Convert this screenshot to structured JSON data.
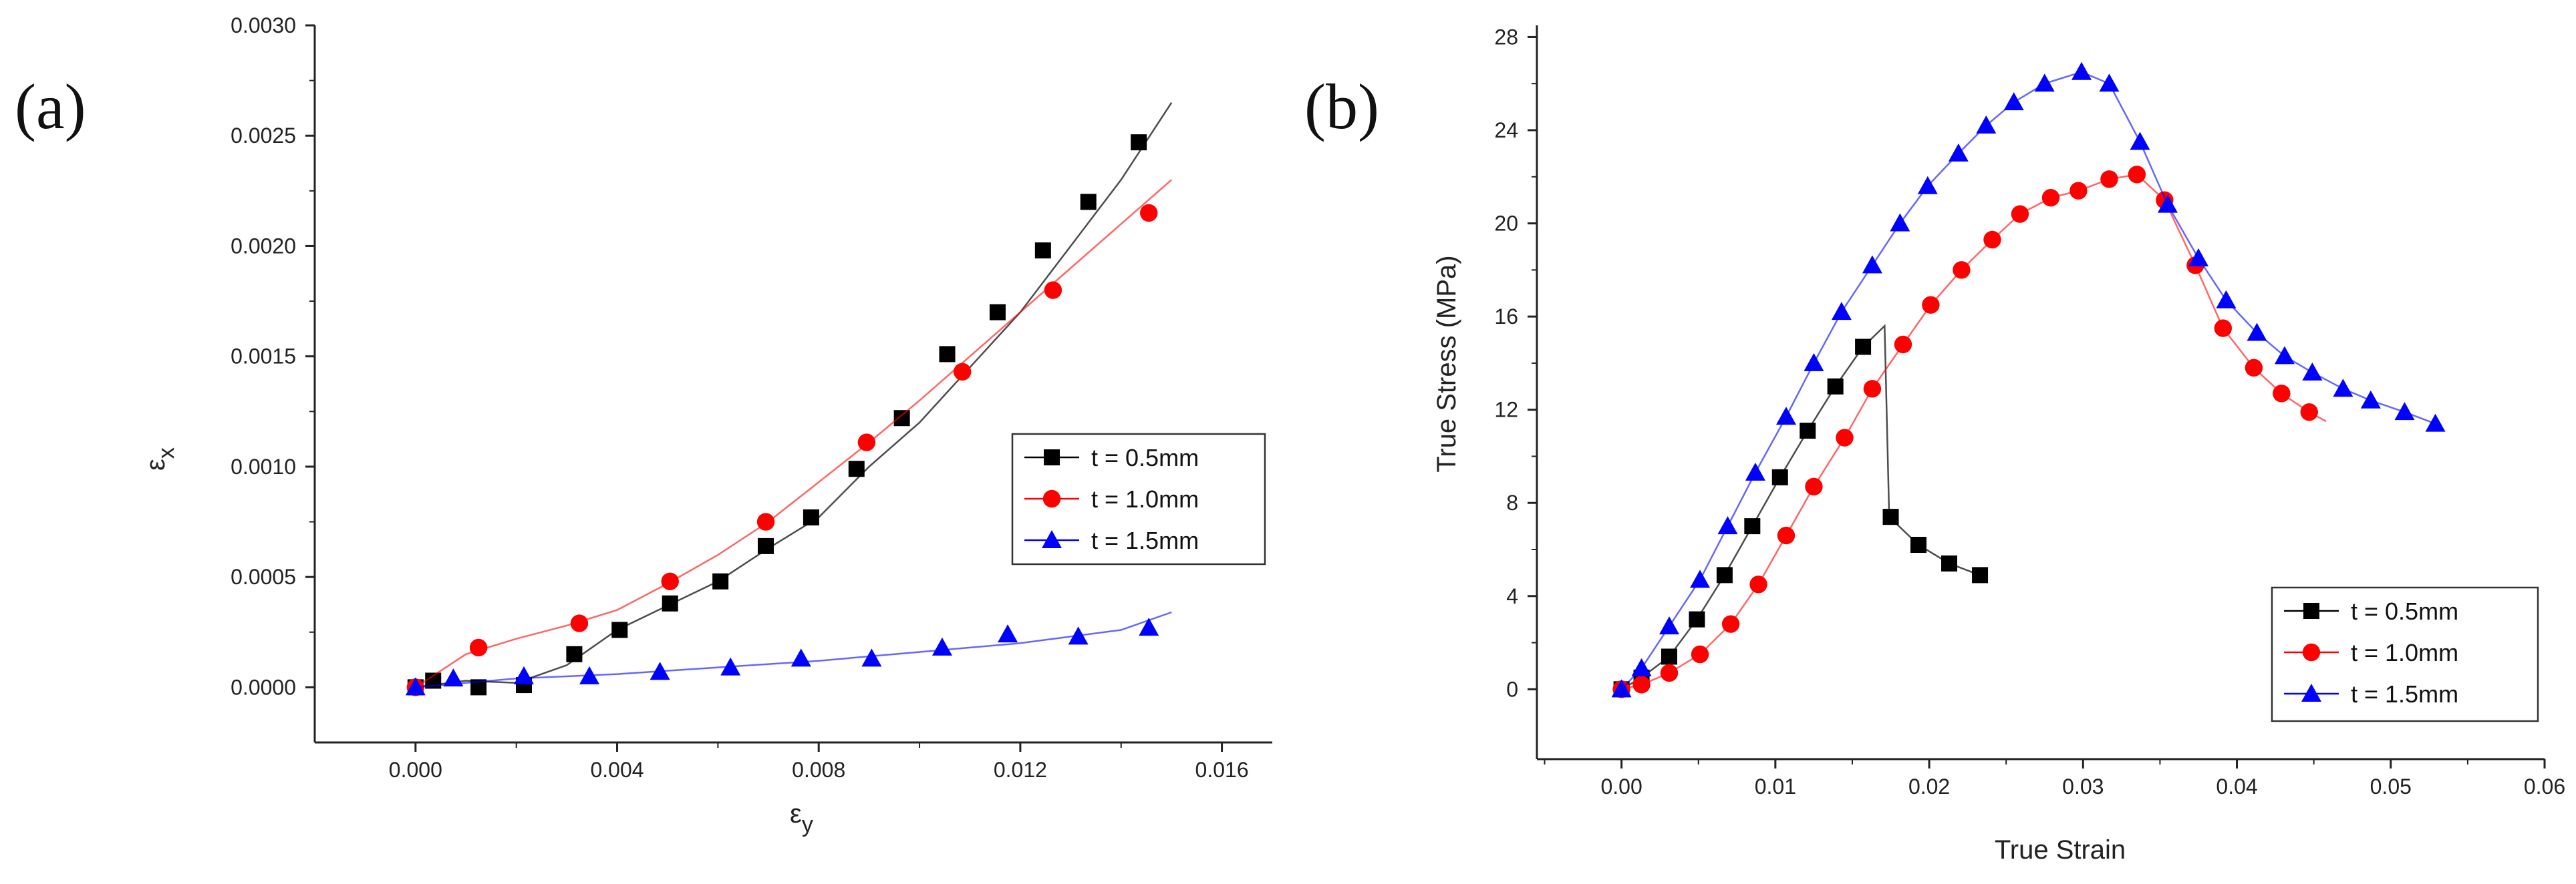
{
  "chart_data": [
    {
      "type": "line",
      "panel_label": "(a)",
      "xlabel": "ε",
      "xlabel_sub": "y",
      "ylabel": "ε",
      "ylabel_sub": "x",
      "xlim": [
        -0.002,
        0.017
      ],
      "ylim": [
        -0.00025,
        0.003
      ],
      "xticks": [
        0.0,
        0.004,
        0.008,
        0.012,
        0.016
      ],
      "xtick_labels": [
        "0.000",
        "0.004",
        "0.008",
        "0.012",
        "0.016"
      ],
      "yticks": [
        0.0,
        0.0005,
        0.001,
        0.0015,
        0.002,
        0.0025,
        0.003
      ],
      "ytick_labels": [
        "0.0000",
        "0.0005",
        "0.0010",
        "0.0015",
        "0.0020",
        "0.0025",
        "0.0030"
      ],
      "legend_position": "center-right",
      "series": [
        {
          "name": "t = 0.5mm",
          "color": "#000000",
          "marker": "square",
          "line": [
            [
              0,
              0
            ],
            [
              0.001,
              3e-05
            ],
            [
              0.002,
              2e-05
            ],
            [
              0.003,
              0.0001
            ],
            [
              0.004,
              0.00026
            ],
            [
              0.005,
              0.00037
            ],
            [
              0.006,
              0.00048
            ],
            [
              0.007,
              0.00063
            ],
            [
              0.008,
              0.00077
            ],
            [
              0.009,
              0.001
            ],
            [
              0.01,
              0.0012
            ],
            [
              0.011,
              0.00145
            ],
            [
              0.012,
              0.0017
            ],
            [
              0.013,
              0.002
            ],
            [
              0.014,
              0.0023
            ],
            [
              0.015,
              0.00265
            ]
          ],
          "points": [
            [
              0.0,
              0.0
            ],
            [
              0.00035,
              3e-05
            ],
            [
              0.00125,
              0.0
            ],
            [
              0.00215,
              1e-05
            ],
            [
              0.00315,
              0.00015
            ],
            [
              0.00405,
              0.00026
            ],
            [
              0.00505,
              0.00038
            ],
            [
              0.00605,
              0.00048
            ],
            [
              0.00695,
              0.00064
            ],
            [
              0.00785,
              0.00077
            ],
            [
              0.00875,
              0.00099
            ],
            [
              0.00965,
              0.00122
            ],
            [
              0.01055,
              0.00151
            ],
            [
              0.01155,
              0.0017
            ],
            [
              0.01245,
              0.00198
            ],
            [
              0.01335,
              0.0022
            ],
            [
              0.01435,
              0.00247
            ]
          ]
        },
        {
          "name": "t = 1.0mm",
          "color": "#ff0000",
          "marker": "circle",
          "line": [
            [
              0,
              0
            ],
            [
              0.001,
              0.00015
            ],
            [
              0.002,
              0.00022
            ],
            [
              0.003,
              0.00028
            ],
            [
              0.004,
              0.00035
            ],
            [
              0.005,
              0.00047
            ],
            [
              0.006,
              0.0006
            ],
            [
              0.007,
              0.00075
            ],
            [
              0.008,
              0.00093
            ],
            [
              0.009,
              0.00111
            ],
            [
              0.01,
              0.0013
            ],
            [
              0.011,
              0.0015
            ],
            [
              0.012,
              0.0017
            ],
            [
              0.013,
              0.0019
            ],
            [
              0.014,
              0.0021
            ],
            [
              0.015,
              0.0023
            ]
          ],
          "points": [
            [
              0.0,
              0.0
            ],
            [
              0.00125,
              0.00018
            ],
            [
              0.00325,
              0.00029
            ],
            [
              0.00505,
              0.00048
            ],
            [
              0.00695,
              0.00075
            ],
            [
              0.00895,
              0.00111
            ],
            [
              0.01085,
              0.00143
            ],
            [
              0.01265,
              0.0018
            ],
            [
              0.01455,
              0.00215
            ]
          ]
        },
        {
          "name": "t = 1.5mm",
          "color": "#0000ff",
          "marker": "triangle",
          "line": [
            [
              0,
              0
            ],
            [
              0.002,
              4e-05
            ],
            [
              0.004,
              6e-05
            ],
            [
              0.006,
              9e-05
            ],
            [
              0.008,
              0.00012
            ],
            [
              0.01,
              0.00016
            ],
            [
              0.012,
              0.0002
            ],
            [
              0.014,
              0.00026
            ],
            [
              0.015,
              0.00034
            ]
          ],
          "points": [
            [
              0.0,
              0.0
            ],
            [
              0.00075,
              4e-05
            ],
            [
              0.00215,
              5e-05
            ],
            [
              0.00345,
              5e-05
            ],
            [
              0.00485,
              7e-05
            ],
            [
              0.00625,
              9e-05
            ],
            [
              0.00765,
              0.00013
            ],
            [
              0.00905,
              0.00013
            ],
            [
              0.01045,
              0.00018
            ],
            [
              0.01175,
              0.00024
            ],
            [
              0.01315,
              0.00023
            ],
            [
              0.01455,
              0.00027
            ]
          ]
        }
      ]
    },
    {
      "type": "line",
      "panel_label": "(b)",
      "xlabel": "True Strain",
      "ylabel": "True Stress (MPa)",
      "xlim": [
        -0.0055,
        0.06
      ],
      "ylim": [
        -3,
        28.5
      ],
      "xticks": [
        0.0,
        0.01,
        0.02,
        0.03,
        0.04,
        0.05,
        0.06
      ],
      "xtick_labels": [
        "0.00",
        "0.01",
        "0.02",
        "0.03",
        "0.04",
        "0.05",
        "0.06"
      ],
      "yticks": [
        0,
        4,
        8,
        12,
        16,
        20,
        24,
        28
      ],
      "ytick_labels": [
        "0",
        "4",
        "8",
        "12",
        "16",
        "20",
        "24",
        "28"
      ],
      "legend_position": "bottom-right",
      "series": [
        {
          "name": "t = 0.5mm",
          "color": "#000000",
          "marker": "square",
          "line": [
            [
              0,
              0
            ],
            [
              0.0013,
              0.5
            ],
            [
              0.0031,
              1.4
            ],
            [
              0.0049,
              3.0
            ],
            [
              0.0067,
              4.9
            ],
            [
              0.0085,
              7.0
            ],
            [
              0.0103,
              9.1
            ],
            [
              0.0121,
              11.1
            ],
            [
              0.0139,
              13.0
            ],
            [
              0.0157,
              14.7
            ],
            [
              0.0171,
              15.6
            ],
            [
              0.0174,
              7.4
            ],
            [
              0.0193,
              6.2
            ],
            [
              0.0213,
              5.4
            ],
            [
              0.0233,
              4.9
            ]
          ],
          "points": [
            [
              0,
              0
            ],
            [
              0.0013,
              0.5
            ],
            [
              0.0031,
              1.4
            ],
            [
              0.0049,
              3.0
            ],
            [
              0.0067,
              4.9
            ],
            [
              0.0085,
              7.0
            ],
            [
              0.0103,
              9.1
            ],
            [
              0.0121,
              11.1
            ],
            [
              0.0139,
              13.0
            ],
            [
              0.0157,
              14.7
            ],
            [
              0.0175,
              7.4
            ],
            [
              0.0193,
              6.2
            ],
            [
              0.0213,
              5.4
            ],
            [
              0.0233,
              4.9
            ]
          ]
        },
        {
          "name": "t = 1.0mm",
          "color": "#ff0000",
          "marker": "circle",
          "line": [
            [
              0,
              0
            ],
            [
              0.0013,
              0.2
            ],
            [
              0.0031,
              0.7
            ],
            [
              0.0051,
              1.5
            ],
            [
              0.0071,
              2.8
            ],
            [
              0.0089,
              4.5
            ],
            [
              0.0107,
              6.6
            ],
            [
              0.0125,
              8.7
            ],
            [
              0.0145,
              10.8
            ],
            [
              0.0163,
              12.9
            ],
            [
              0.0183,
              14.8
            ],
            [
              0.0201,
              16.5
            ],
            [
              0.0221,
              18.0
            ],
            [
              0.0241,
              19.3
            ],
            [
              0.0259,
              20.4
            ],
            [
              0.0279,
              21.1
            ],
            [
              0.0297,
              21.4
            ],
            [
              0.0317,
              21.9
            ],
            [
              0.0335,
              22.1
            ],
            [
              0.0353,
              21.0
            ],
            [
              0.0373,
              18.2
            ],
            [
              0.0391,
              15.5
            ],
            [
              0.0411,
              13.8
            ],
            [
              0.0429,
              12.7
            ],
            [
              0.0447,
              11.9
            ],
            [
              0.0458,
              11.5
            ]
          ],
          "points": [
            [
              0,
              0
            ],
            [
              0.0013,
              0.2
            ],
            [
              0.0031,
              0.7
            ],
            [
              0.0051,
              1.5
            ],
            [
              0.0071,
              2.8
            ],
            [
              0.0089,
              4.5
            ],
            [
              0.0107,
              6.6
            ],
            [
              0.0125,
              8.7
            ],
            [
              0.0145,
              10.8
            ],
            [
              0.0163,
              12.9
            ],
            [
              0.0183,
              14.8
            ],
            [
              0.0201,
              16.5
            ],
            [
              0.0221,
              18.0
            ],
            [
              0.0241,
              19.3
            ],
            [
              0.0259,
              20.4
            ],
            [
              0.0279,
              21.1
            ],
            [
              0.0297,
              21.4
            ],
            [
              0.0317,
              21.9
            ],
            [
              0.0335,
              22.1
            ],
            [
              0.0353,
              21.0
            ],
            [
              0.0373,
              18.2
            ],
            [
              0.0391,
              15.5
            ],
            [
              0.0411,
              13.8
            ],
            [
              0.0429,
              12.7
            ],
            [
              0.0447,
              11.9
            ]
          ]
        },
        {
          "name": "t = 1.5mm",
          "color": "#0000ff",
          "marker": "triangle",
          "line": [
            [
              0,
              0
            ],
            [
              0.0013,
              0.9
            ],
            [
              0.0031,
              2.7
            ],
            [
              0.0051,
              4.7
            ],
            [
              0.0069,
              7.0
            ],
            [
              0.0087,
              9.3
            ],
            [
              0.0107,
              11.7
            ],
            [
              0.0125,
              14.0
            ],
            [
              0.0143,
              16.2
            ],
            [
              0.0163,
              18.2
            ],
            [
              0.0181,
              20.0
            ],
            [
              0.0199,
              21.6
            ],
            [
              0.0219,
              23.0
            ],
            [
              0.0237,
              24.2
            ],
            [
              0.0255,
              25.2
            ],
            [
              0.0275,
              26.0
            ],
            [
              0.0299,
              26.5
            ],
            [
              0.0317,
              26.0
            ],
            [
              0.0337,
              23.5
            ],
            [
              0.0355,
              20.8
            ],
            [
              0.0375,
              18.5
            ],
            [
              0.0393,
              16.7
            ],
            [
              0.0413,
              15.3
            ],
            [
              0.0431,
              14.3
            ],
            [
              0.0449,
              13.6
            ],
            [
              0.0469,
              12.9
            ],
            [
              0.0487,
              12.4
            ],
            [
              0.0509,
              11.9
            ],
            [
              0.0529,
              11.4
            ]
          ],
          "points": [
            [
              0,
              0
            ],
            [
              0.0013,
              0.9
            ],
            [
              0.0031,
              2.7
            ],
            [
              0.0051,
              4.7
            ],
            [
              0.0069,
              7.0
            ],
            [
              0.0087,
              9.3
            ],
            [
              0.0107,
              11.7
            ],
            [
              0.0125,
              14.0
            ],
            [
              0.0143,
              16.2
            ],
            [
              0.0163,
              18.2
            ],
            [
              0.0181,
              20.0
            ],
            [
              0.0199,
              21.6
            ],
            [
              0.0219,
              23.0
            ],
            [
              0.0237,
              24.2
            ],
            [
              0.0255,
              25.2
            ],
            [
              0.0275,
              26.0
            ],
            [
              0.0299,
              26.5
            ],
            [
              0.0317,
              26.0
            ],
            [
              0.0337,
              23.5
            ],
            [
              0.0355,
              20.8
            ],
            [
              0.0375,
              18.5
            ],
            [
              0.0393,
              16.7
            ],
            [
              0.0413,
              15.3
            ],
            [
              0.0431,
              14.3
            ],
            [
              0.0449,
              13.6
            ],
            [
              0.0469,
              12.9
            ],
            [
              0.0487,
              12.4
            ],
            [
              0.0509,
              11.9
            ],
            [
              0.0529,
              11.4
            ]
          ]
        }
      ]
    }
  ]
}
